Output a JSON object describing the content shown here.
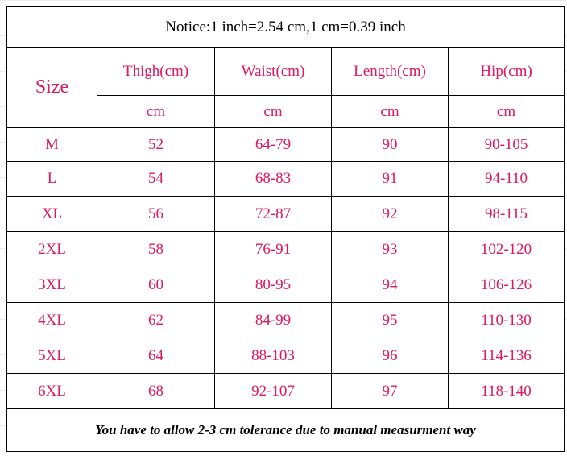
{
  "notice": "Notice:1 inch=2.54 cm,1 cm=0.39 inch",
  "table": {
    "size_header": "Size",
    "columns": [
      "Thigh(cm)",
      "Waist(cm)",
      "Length(cm)",
      "Hip(cm)"
    ],
    "units": [
      "cm",
      "cm",
      "cm",
      "cm"
    ],
    "rows": [
      [
        "M",
        52,
        "64-79",
        90,
        "90-105"
      ],
      [
        "L",
        54,
        "68-83",
        91,
        "94-110"
      ],
      [
        "XL",
        56,
        "72-87",
        92,
        "98-115"
      ],
      [
        "2XL",
        58,
        "76-91",
        93,
        "102-120"
      ],
      [
        "3XL",
        60,
        "80-95",
        94,
        "106-126"
      ],
      [
        "4XL",
        62,
        "84-99",
        95,
        "110-130"
      ],
      [
        "5XL",
        64,
        "88-103",
        96,
        "114-136"
      ],
      [
        "6XL",
        68,
        "92-107",
        97,
        "118-140"
      ]
    ]
  },
  "footer": "You have to allow 2-3 cm tolerance due to manual measurment way"
}
